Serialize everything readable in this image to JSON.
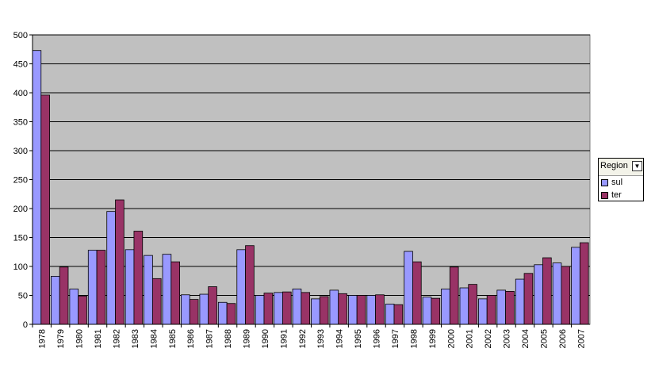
{
  "chart_data": {
    "type": "bar",
    "categories": [
      "1978",
      "1979",
      "1980",
      "1981",
      "1982",
      "1983",
      "1984",
      "1985",
      "1986",
      "1987",
      "1988",
      "1989",
      "1990",
      "1991",
      "1992",
      "1993",
      "1994",
      "1995",
      "1996",
      "1997",
      "1998",
      "1999",
      "2000",
      "2001",
      "2002",
      "2003",
      "2004",
      "2005",
      "2006",
      "2007"
    ],
    "series": [
      {
        "name": "sul",
        "color": "#9999ff",
        "values": [
          473,
          83,
          61,
          128,
          195,
          129,
          119,
          121,
          51,
          52,
          38,
          129,
          50,
          55,
          61,
          44,
          59,
          50,
          50,
          35,
          126,
          47,
          61,
          63,
          44,
          59,
          78,
          103,
          106,
          133
        ]
      },
      {
        "name": "ter",
        "color": "#993366",
        "values": [
          396,
          99,
          49,
          128,
          215,
          161,
          79,
          108,
          43,
          65,
          36,
          136,
          54,
          56,
          55,
          48,
          53,
          50,
          51,
          34,
          108,
          45,
          99,
          69,
          50,
          57,
          88,
          115,
          100,
          141
        ]
      }
    ],
    "ylim": [
      0,
      500
    ],
    "yticks": [
      0,
      50,
      100,
      150,
      200,
      250,
      300,
      350,
      400,
      450,
      500
    ],
    "grid": true,
    "plot_background": "#c0c0c0",
    "legend": {
      "title": "Region",
      "position": "right"
    }
  }
}
